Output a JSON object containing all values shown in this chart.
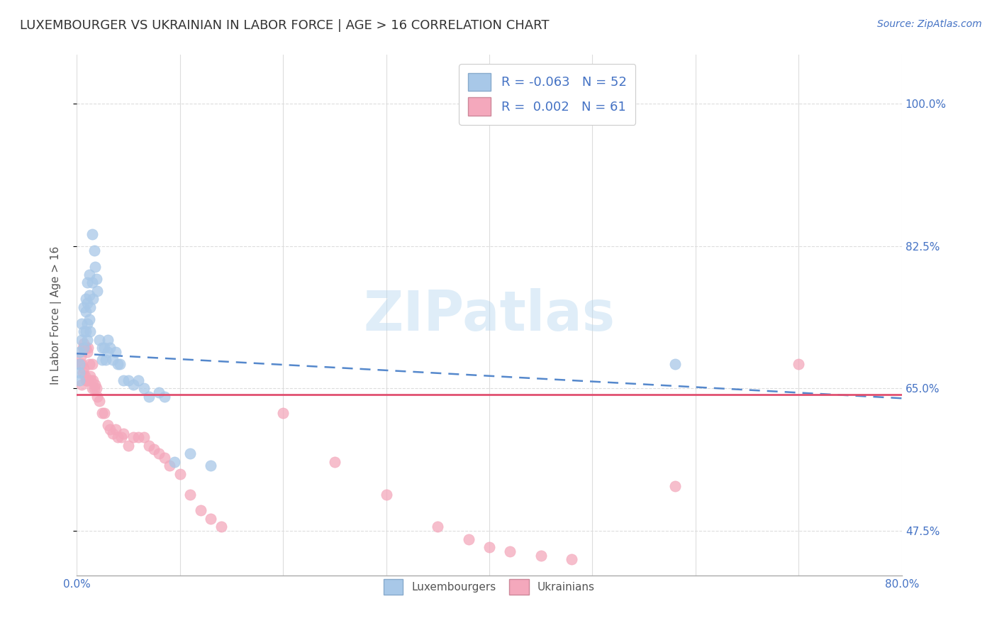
{
  "title": "LUXEMBOURGER VS UKRAINIAN IN LABOR FORCE | AGE > 16 CORRELATION CHART",
  "source": "Source: ZipAtlas.com",
  "ylabel": "In Labor Force | Age > 16",
  "xlim": [
    0.0,
    0.8
  ],
  "ylim": [
    0.42,
    1.06
  ],
  "yticks": [
    0.475,
    0.65,
    0.825,
    1.0
  ],
  "ytick_labels": [
    "47.5%",
    "65.0%",
    "82.5%",
    "100.0%"
  ],
  "lux_R": -0.063,
  "lux_N": 52,
  "ukr_R": 0.002,
  "ukr_N": 61,
  "lux_color": "#a8c8e8",
  "ukr_color": "#f4a8bc",
  "lux_line_color": "#5588cc",
  "ukr_line_color": "#e05070",
  "lux_line_start_y": 0.693,
  "lux_line_end_y": 0.638,
  "ukr_line_y": 0.643,
  "lux_scatter_x": [
    0.003,
    0.003,
    0.003,
    0.003,
    0.005,
    0.005,
    0.007,
    0.007,
    0.007,
    0.009,
    0.009,
    0.009,
    0.01,
    0.01,
    0.01,
    0.01,
    0.012,
    0.012,
    0.012,
    0.013,
    0.013,
    0.015,
    0.015,
    0.016,
    0.017,
    0.018,
    0.019,
    0.02,
    0.022,
    0.025,
    0.025,
    0.027,
    0.028,
    0.03,
    0.03,
    0.032,
    0.035,
    0.038,
    0.04,
    0.042,
    0.045,
    0.05,
    0.055,
    0.06,
    0.065,
    0.07,
    0.08,
    0.085,
    0.095,
    0.11,
    0.13,
    0.58
  ],
  "lux_scatter_y": [
    0.695,
    0.68,
    0.67,
    0.66,
    0.73,
    0.71,
    0.75,
    0.72,
    0.7,
    0.76,
    0.745,
    0.72,
    0.78,
    0.755,
    0.73,
    0.71,
    0.79,
    0.765,
    0.735,
    0.75,
    0.72,
    0.84,
    0.78,
    0.76,
    0.82,
    0.8,
    0.785,
    0.77,
    0.71,
    0.7,
    0.685,
    0.7,
    0.685,
    0.71,
    0.695,
    0.7,
    0.685,
    0.695,
    0.68,
    0.68,
    0.66,
    0.66,
    0.655,
    0.66,
    0.65,
    0.64,
    0.645,
    0.64,
    0.56,
    0.57,
    0.555,
    0.68
  ],
  "ukr_scatter_x": [
    0.003,
    0.004,
    0.005,
    0.005,
    0.006,
    0.006,
    0.007,
    0.007,
    0.008,
    0.008,
    0.009,
    0.009,
    0.01,
    0.01,
    0.011,
    0.011,
    0.012,
    0.013,
    0.014,
    0.015,
    0.015,
    0.016,
    0.017,
    0.018,
    0.019,
    0.02,
    0.022,
    0.025,
    0.027,
    0.03,
    0.032,
    0.035,
    0.038,
    0.04,
    0.043,
    0.045,
    0.05,
    0.055,
    0.06,
    0.065,
    0.07,
    0.075,
    0.08,
    0.085,
    0.09,
    0.1,
    0.11,
    0.12,
    0.13,
    0.14,
    0.2,
    0.25,
    0.3,
    0.35,
    0.38,
    0.4,
    0.42,
    0.45,
    0.48,
    0.58,
    0.7
  ],
  "ukr_scatter_y": [
    0.68,
    0.69,
    0.68,
    0.655,
    0.7,
    0.67,
    0.705,
    0.675,
    0.7,
    0.665,
    0.7,
    0.66,
    0.695,
    0.66,
    0.7,
    0.66,
    0.68,
    0.665,
    0.66,
    0.68,
    0.65,
    0.66,
    0.65,
    0.655,
    0.65,
    0.64,
    0.635,
    0.62,
    0.62,
    0.605,
    0.6,
    0.595,
    0.6,
    0.59,
    0.59,
    0.595,
    0.58,
    0.59,
    0.59,
    0.59,
    0.58,
    0.575,
    0.57,
    0.565,
    0.555,
    0.545,
    0.52,
    0.5,
    0.49,
    0.48,
    0.62,
    0.56,
    0.52,
    0.48,
    0.465,
    0.455,
    0.45,
    0.445,
    0.44,
    0.53,
    0.68
  ]
}
